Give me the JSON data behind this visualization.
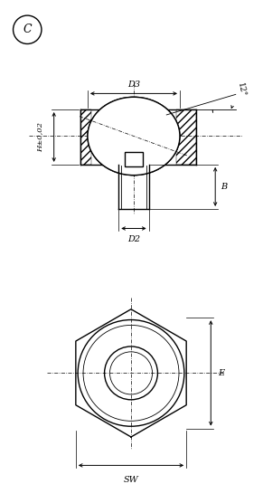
{
  "bg_color": "#ffffff",
  "line_color": "#000000",
  "fig_width": 2.91,
  "fig_height": 5.56,
  "dpi": 100,
  "labels": {
    "C": "C",
    "D3": "D3",
    "D2": "D2",
    "H": "H±0,02",
    "B": "B",
    "E": "E",
    "SW": "SW",
    "angle": "12°"
  }
}
